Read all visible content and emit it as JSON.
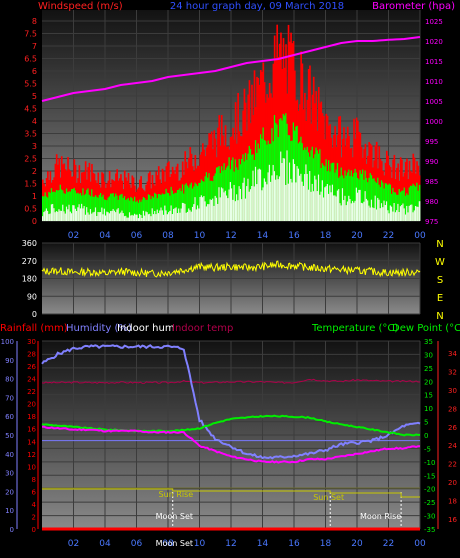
{
  "colors": {
    "wind": "#ff2020",
    "gust_fill": "#ff0000",
    "avg": "#00ff00",
    "lull": "#e8ffe8",
    "baro": "#ff00ff",
    "dir": "#ffff00",
    "rain": "#ff0000",
    "hum": "#8080ff",
    "inhum": "#ffffff",
    "intemp": "#b0004a",
    "temp": "#00ee00",
    "dew": "#ff2020",
    "sun": "#c8c800",
    "moon": "#ffffff"
  },
  "chart_data": [
    {
      "type": "line",
      "title": "24 hour graph day, 09 March 2018",
      "legend_left": "Windspeed (m/s)",
      "legend_right": "Barometer (hpa)",
      "x_ticks": [
        "02",
        "04",
        "06",
        "08",
        "10",
        "12",
        "14",
        "16",
        "18",
        "20",
        "22",
        "00"
      ],
      "y_ticks_left": [
        "8",
        "7.5",
        "7",
        "6.5",
        "6",
        "5.5",
        "5",
        "4.5",
        "4",
        "3.5",
        "3",
        "2.5",
        "2",
        "1.5",
        "1",
        "0.5",
        "0"
      ],
      "y_ticks_right": [
        "1025",
        "1020",
        "1015",
        "1010",
        "1005",
        "1000",
        "995",
        "990",
        "985",
        "980",
        "975"
      ],
      "ylim_left": [
        0,
        8
      ],
      "ylim_right": [
        975,
        1025
      ],
      "series": [
        {
          "name": "Windspeed (m/s)",
          "hours": [
            0,
            1,
            2,
            3,
            4,
            5,
            6,
            7,
            8,
            9,
            10,
            11,
            12,
            13,
            14,
            15,
            16,
            17,
            18,
            19,
            20,
            21,
            22,
            23,
            24
          ],
          "values": [
            1.5,
            2.0,
            1.8,
            1.8,
            1.5,
            1.5,
            1.3,
            1.5,
            1.8,
            2.0,
            2.5,
            3.0,
            3.5,
            4.0,
            5.0,
            6.0,
            5.5,
            4.5,
            3.5,
            3.0,
            3.0,
            2.5,
            2.0,
            1.8,
            2.2
          ]
        },
        {
          "name": "Barometer (hpa)",
          "hours": [
            0,
            1,
            2,
            3,
            4,
            5,
            6,
            7,
            8,
            9,
            10,
            11,
            12,
            13,
            14,
            15,
            16,
            17,
            18,
            19,
            20,
            21,
            22,
            23,
            24
          ],
          "values": [
            1005,
            1006,
            1007,
            1007.5,
            1008,
            1009,
            1009.5,
            1010,
            1011,
            1011.5,
            1012,
            1012.5,
            1013.5,
            1014.5,
            1015,
            1015.5,
            1016.5,
            1017.5,
            1018.5,
            1019.5,
            1020,
            1020,
            1020.3,
            1020.5,
            1021
          ]
        }
      ]
    },
    {
      "type": "scatter",
      "legend_right": [
        "N",
        "W",
        "S",
        "E",
        "N"
      ],
      "y_ticks": [
        "360",
        "270",
        "180",
        "90",
        "0"
      ],
      "ylim": [
        0,
        360
      ],
      "series": [
        {
          "name": "Wind direction",
          "hours": [
            0,
            1,
            2,
            3,
            4,
            5,
            6,
            7,
            8,
            9,
            10,
            11,
            12,
            13,
            14,
            15,
            16,
            17,
            18,
            19,
            20,
            21,
            22,
            23,
            24
          ],
          "values": [
            215,
            220,
            210,
            215,
            205,
            215,
            210,
            205,
            210,
            225,
            240,
            235,
            240,
            235,
            240,
            250,
            245,
            235,
            230,
            225,
            220,
            215,
            210,
            210,
            215
          ]
        }
      ]
    },
    {
      "type": "line",
      "legend_top": [
        "Rainfall (mm)",
        "Humidity (%)",
        "Indoor hum",
        "Indoor temp",
        "Temperature (°C)",
        "Dew Point (°C)"
      ],
      "x_ticks": [
        "02",
        "04",
        "06",
        "08",
        "10",
        "12",
        "14",
        "16",
        "18",
        "20",
        "22",
        "00"
      ],
      "y_ticks_far_left": [
        "100",
        "90",
        "80",
        "70",
        "60",
        "50",
        "40",
        "30",
        "20",
        "10",
        "0"
      ],
      "y_ticks_left": [
        "30",
        "28",
        "26",
        "24",
        "22",
        "20",
        "18",
        "16",
        "14",
        "12",
        "10",
        "8",
        "6",
        "4",
        "2",
        "0"
      ],
      "y_ticks_right": [
        "35",
        "30",
        "25",
        "20",
        "15",
        "10",
        "5",
        "0",
        "-5",
        "-10",
        "-15",
        "-20",
        "-25",
        "-30",
        "-35"
      ],
      "y_ticks_far_right": [
        "34",
        "32",
        "30",
        "28",
        "26",
        "24",
        "22",
        "20",
        "18",
        "16"
      ],
      "ylim_humidity": [
        0,
        100
      ],
      "ylim_temp": [
        -35,
        35
      ],
      "annotations": [
        "Sun Rise",
        "Sun Set",
        "Moon Set",
        "Moon Set",
        "Moon Rise"
      ],
      "series": [
        {
          "name": "Humidity (%)",
          "hours": [
            0,
            1,
            2,
            3,
            4,
            5,
            6,
            7,
            8,
            9,
            10,
            11,
            12,
            13,
            14,
            15,
            16,
            17,
            18,
            19,
            20,
            21,
            22,
            23,
            24
          ],
          "values": [
            88,
            93,
            96,
            97,
            97,
            97,
            97,
            97,
            97,
            96,
            58,
            48,
            44,
            40,
            38,
            38,
            39,
            40,
            42,
            45,
            46,
            47,
            50,
            55,
            56
          ]
        },
        {
          "name": "Temperature (°C)",
          "hours": [
            0,
            1,
            2,
            3,
            4,
            5,
            6,
            7,
            8,
            9,
            10,
            11,
            12,
            13,
            14,
            15,
            16,
            17,
            18,
            19,
            20,
            21,
            22,
            23,
            24
          ],
          "values": [
            4,
            3.5,
            3,
            2.5,
            2,
            1.8,
            1.5,
            1.5,
            1.5,
            1.8,
            2.5,
            4.5,
            6,
            6.5,
            7,
            7,
            6.8,
            6.5,
            5,
            4,
            3,
            2,
            1,
            0,
            0
          ]
        },
        {
          "name": "Dew Point (°C)",
          "hours": [
            0,
            1,
            2,
            3,
            4,
            5,
            6,
            7,
            8,
            9,
            10,
            11,
            12,
            13,
            14,
            15,
            16,
            17,
            18,
            19,
            20,
            21,
            22,
            23,
            24
          ],
          "values": [
            3,
            2.5,
            2,
            2,
            1.5,
            1.5,
            1.5,
            1,
            1,
            1,
            -4,
            -6,
            -8,
            -9,
            -10,
            -10,
            -10,
            -9,
            -9,
            -8,
            -7,
            -6,
            -5,
            -5,
            -4
          ]
        },
        {
          "name": "Indoor temp",
          "hours": [
            0,
            1,
            2,
            3,
            4,
            5,
            6,
            7,
            8,
            9,
            10,
            11,
            12,
            13,
            14,
            15,
            16,
            17,
            18,
            19,
            20,
            21,
            22,
            23,
            24
          ],
          "values": [
            19.5,
            19.5,
            19.6,
            19.5,
            19.5,
            19.6,
            19.5,
            19.5,
            19.5,
            20,
            19.5,
            19.6,
            19.8,
            19.8,
            19.8,
            19.5,
            19.6,
            20.8,
            20.2,
            20,
            20.5,
            20.2,
            20,
            20,
            20
          ]
        },
        {
          "name": "Indoor hum",
          "hours": [
            0,
            24
          ],
          "values": [
            47,
            47
          ]
        },
        {
          "name": "Rainfall (mm)",
          "hours": [
            0,
            24
          ],
          "values": [
            0,
            0
          ]
        }
      ]
    }
  ]
}
